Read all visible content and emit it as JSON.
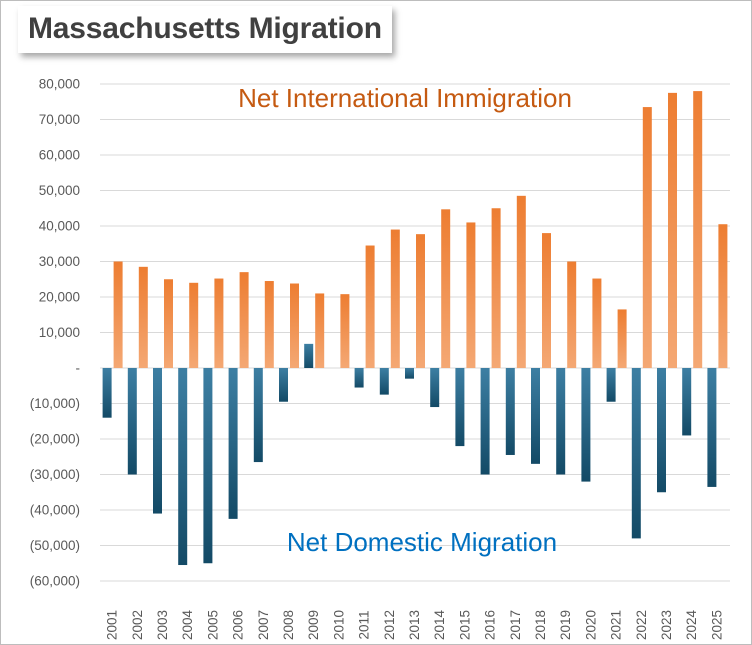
{
  "chart_data": {
    "type": "bar",
    "title": "Massachusetts Migration",
    "categories": [
      "2001",
      "2002",
      "2003",
      "2004",
      "2005",
      "2006",
      "2007",
      "2008",
      "2009",
      "2010",
      "2011",
      "2012",
      "2013",
      "2014",
      "2015",
      "2016",
      "2017",
      "2018",
      "2019",
      "2020",
      "2021",
      "2022",
      "2023",
      "2024",
      "2025"
    ],
    "series": [
      {
        "name": "Net International Immigration",
        "color": "#ed7d31",
        "values": [
          30000,
          28500,
          25000,
          24000,
          25200,
          27000,
          24500,
          23800,
          21000,
          20800,
          34500,
          39000,
          37700,
          44700,
          41000,
          45000,
          48500,
          38000,
          30000,
          25200,
          16500,
          73500,
          77500,
          78000,
          40500
        ]
      },
      {
        "name": "Net Domestic Migration",
        "color": "#1f5f7f",
        "values": [
          -14000,
          -30000,
          -41000,
          -55500,
          -55000,
          -42500,
          -26500,
          -9500,
          6800,
          0,
          -5500,
          -7500,
          -3000,
          -11000,
          -22000,
          -30000,
          -24500,
          -27000,
          -30000,
          -32000,
          -9500,
          -48000,
          -35000,
          -19000,
          -33500
        ]
      }
    ],
    "ylim": [
      -60000,
      80000
    ],
    "yticks": [
      {
        "value": 80000,
        "label": "80,000"
      },
      {
        "value": 70000,
        "label": "70,000"
      },
      {
        "value": 60000,
        "label": "60,000"
      },
      {
        "value": 50000,
        "label": "50,000"
      },
      {
        "value": 40000,
        "label": "40,000"
      },
      {
        "value": 30000,
        "label": "30,000"
      },
      {
        "value": 20000,
        "label": "20,000"
      },
      {
        "value": 10000,
        "label": "10,000"
      },
      {
        "value": 0,
        "label": "-"
      },
      {
        "value": -10000,
        "label": "(10,000)"
      },
      {
        "value": -20000,
        "label": "(20,000)"
      },
      {
        "value": -30000,
        "label": "(30,000)"
      },
      {
        "value": -40000,
        "label": "(40,000)"
      },
      {
        "value": -50000,
        "label": "(50,000)"
      },
      {
        "value": -60000,
        "label": "(60,000)"
      }
    ],
    "grid": true,
    "annotations": {
      "international": "Net International Immigration",
      "domestic": "Net Domestic Migration"
    }
  }
}
